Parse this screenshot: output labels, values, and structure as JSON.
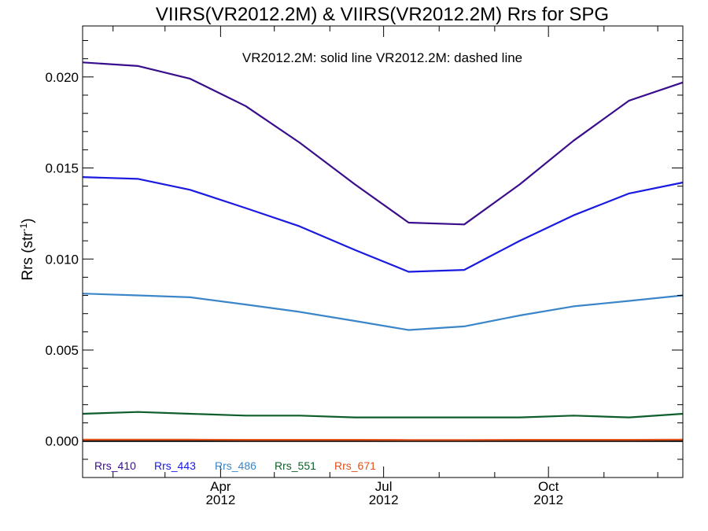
{
  "chart_data": {
    "type": "line",
    "title": "VIIRS(VR2012.2M) & VIIRS(VR2012.2M)  Rrs for SPG",
    "annotation": "VR2012.2M: solid line   VR2012.2M: dashed line",
    "ylabel_main": "Rrs (str",
    "ylabel_sup": "-1",
    "ylabel_close": ")",
    "ylim": [
      -0.002,
      0.0228
    ],
    "xlim": [
      "2012-01-15",
      "2012-12-15"
    ],
    "grid": false,
    "legend_position": "bottom-left",
    "y_ticks": [
      {
        "value": 0.0,
        "label": "0.000"
      },
      {
        "value": 0.005,
        "label": "0.005"
      },
      {
        "value": 0.01,
        "label": "0.010"
      },
      {
        "value": 0.015,
        "label": "0.015"
      },
      {
        "value": 0.02,
        "label": "0.020"
      }
    ],
    "x_ticks": [
      {
        "date": "2012-04-01",
        "label": "Apr",
        "year": "2012"
      },
      {
        "date": "2012-07-01",
        "label": "Jul",
        "year": "2012"
      },
      {
        "date": "2012-10-01",
        "label": "Oct",
        "year": "2012"
      }
    ],
    "x": [
      "2012-01-15",
      "2012-02-15",
      "2012-03-15",
      "2012-04-15",
      "2012-05-15",
      "2012-06-15",
      "2012-07-15",
      "2012-08-15",
      "2012-09-15",
      "2012-10-15",
      "2012-11-15",
      "2012-12-15"
    ],
    "series": [
      {
        "name": "Rrs_410",
        "color": "#3a0d8c",
        "values": [
          0.0208,
          0.0206,
          0.0199,
          0.0184,
          0.0164,
          0.0141,
          0.012,
          0.0119,
          0.0141,
          0.0165,
          0.0187,
          0.0197
        ]
      },
      {
        "name": "Rrs_443",
        "color": "#1a1ae0",
        "values": [
          0.0145,
          0.0144,
          0.0138,
          0.0128,
          0.0118,
          0.0105,
          0.0093,
          0.0094,
          0.011,
          0.0124,
          0.0136,
          0.0142
        ]
      },
      {
        "name": "Rrs_486",
        "color": "#3a86c8",
        "values": [
          0.0081,
          0.008,
          0.0079,
          0.0075,
          0.0071,
          0.0066,
          0.0061,
          0.0063,
          0.0069,
          0.0074,
          0.0077,
          0.008
        ]
      },
      {
        "name": "Rrs_551",
        "color": "#0d5e2a",
        "values": [
          0.0015,
          0.0016,
          0.0015,
          0.0014,
          0.0014,
          0.0013,
          0.0013,
          0.0013,
          0.0013,
          0.0014,
          0.0013,
          0.0015
        ]
      },
      {
        "name": "Rrs_671",
        "color": "#e0501a",
        "values": [
          8e-05,
          8e-05,
          8e-05,
          7e-05,
          7e-05,
          7e-05,
          6e-05,
          6e-05,
          7e-05,
          7e-05,
          7e-05,
          8e-05
        ]
      }
    ],
    "baseline": {
      "value": 0.0,
      "color": "#000000"
    }
  }
}
